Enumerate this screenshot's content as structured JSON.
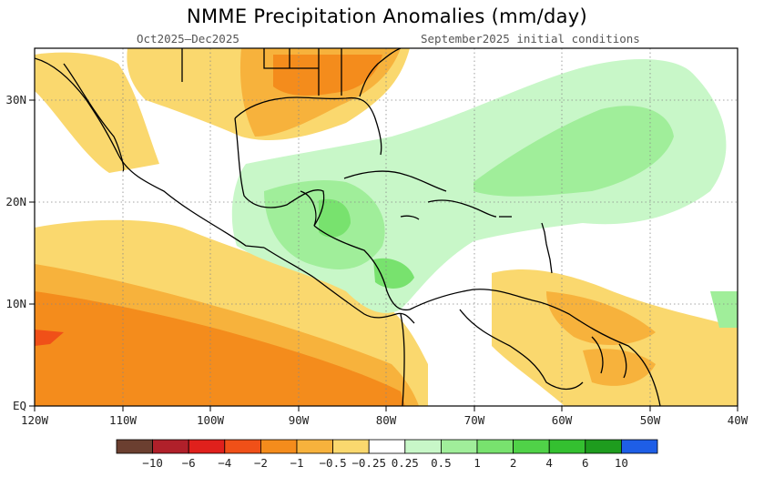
{
  "title": "NMME Precipitation Anomalies (mm/day)",
  "subtitle_left": "Oct2025–Dec2025",
  "subtitle_right": "September2025 initial conditions",
  "axes": {
    "lon_labels": [
      "120W",
      "110W",
      "100W",
      "90W",
      "80W",
      "70W",
      "60W",
      "50W",
      "40W"
    ],
    "lat_labels": [
      "EQ",
      "10N",
      "20N",
      "30N"
    ]
  },
  "colorbar": {
    "colors": [
      "#6b3f30",
      "#b0202a",
      "#e0201c",
      "#f05018",
      "#f48c1c",
      "#f7b23c",
      "#fad86e",
      "#ffffff",
      "#c8f7c8",
      "#a0ee9a",
      "#78e26e",
      "#50d248",
      "#34c030",
      "#1e9c1e",
      "#1e5ee6"
    ],
    "labels": [
      "−10",
      "−6",
      "−4",
      "−2",
      "−1",
      "−0.5",
      "−0.25",
      "0.25",
      "0.5",
      "1",
      "2",
      "4",
      "6",
      "10"
    ]
  }
}
